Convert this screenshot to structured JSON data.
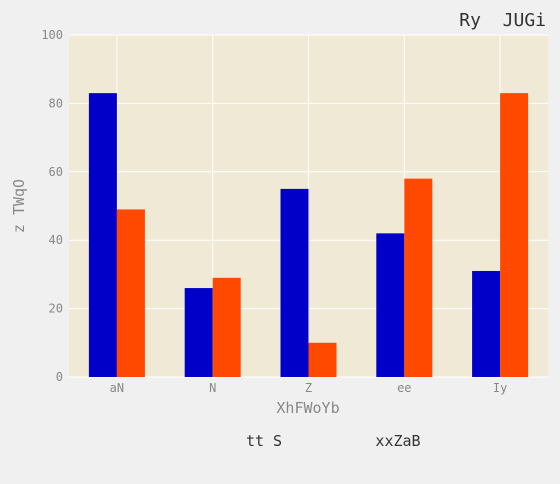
{
  "chart_data": {
    "type": "bar",
    "title": "Ry  JUGi",
    "xlabel": "XhFWoYb",
    "ylabel": "z TWqO",
    "categories": [
      "aN",
      "N",
      "Z",
      "ee",
      "Iy"
    ],
    "series": [
      {
        "name": "tt S",
        "color": "#0000c8",
        "values": [
          83,
          26,
          55,
          42,
          31
        ]
      },
      {
        "name": "xxZaB",
        "color": "#ff4800",
        "values": [
          49,
          29,
          10,
          58,
          83
        ]
      }
    ],
    "ylim": [
      0,
      100
    ],
    "yticks": [
      "0",
      "20",
      "40",
      "60",
      "80",
      "100"
    ],
    "grid": true,
    "legend_position": "bottom",
    "plot_background": "#efe9d6"
  }
}
